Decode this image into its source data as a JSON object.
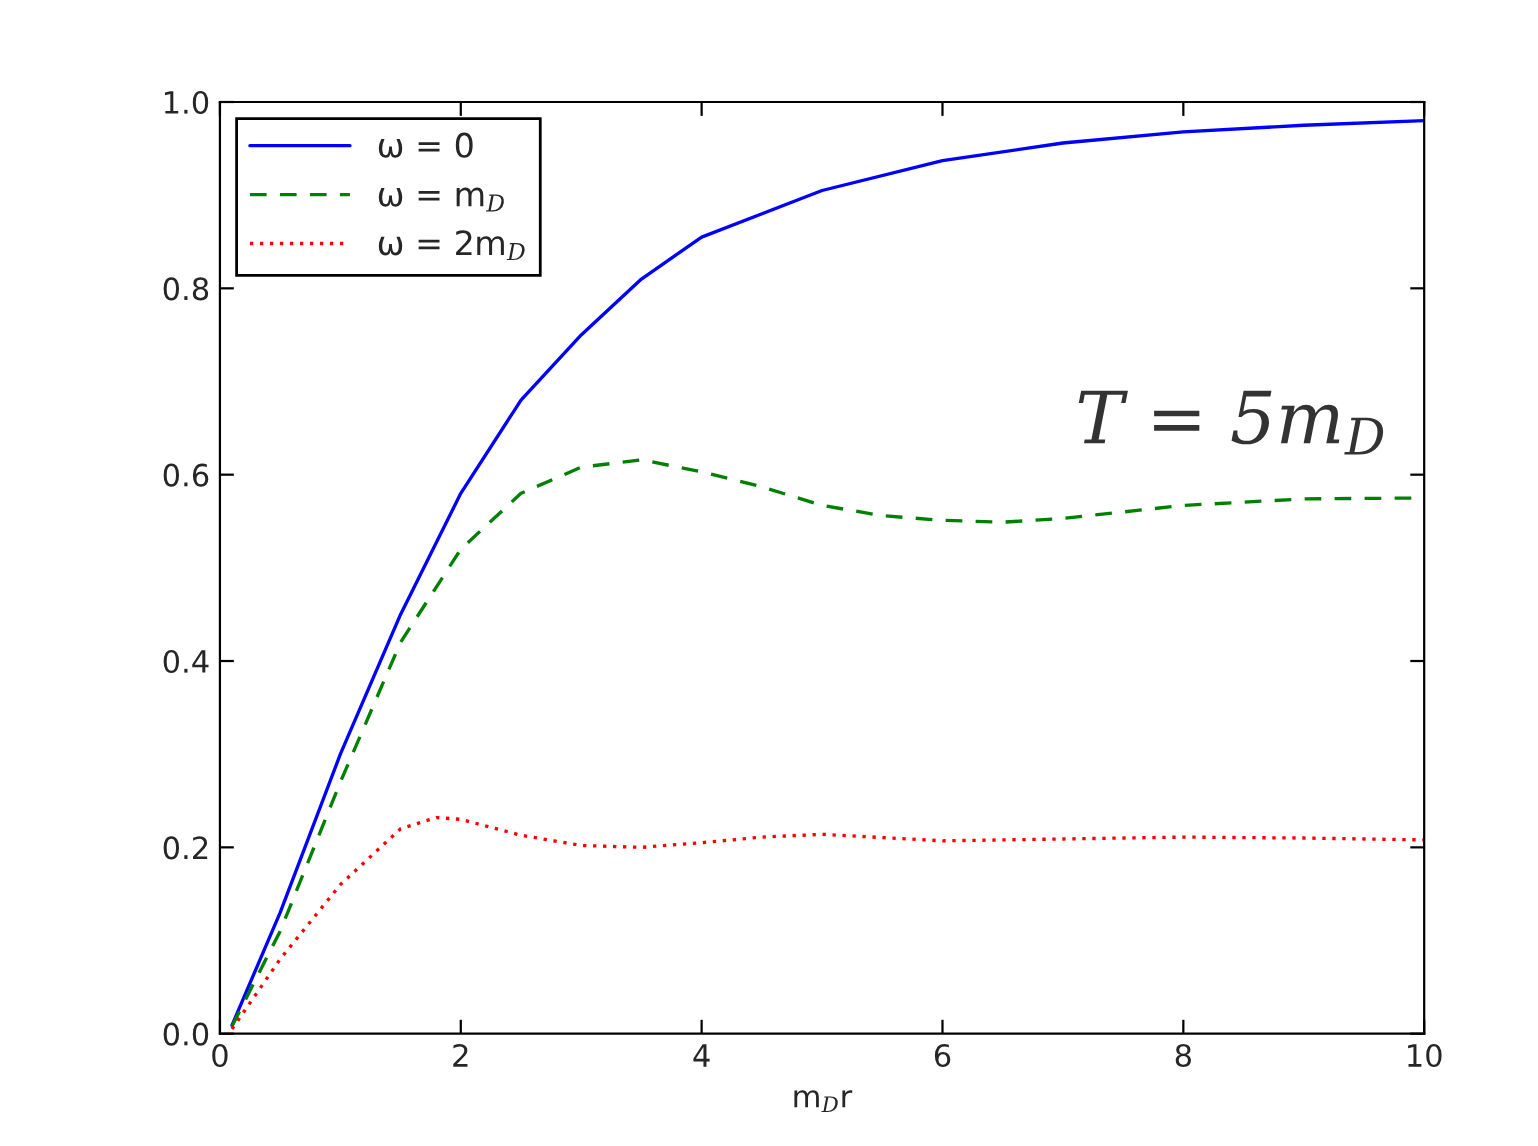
{
  "chart_data": {
    "type": "line",
    "xlabel": "m$_{D}$r",
    "xlim": [
      0,
      10
    ],
    "xticks": [
      0,
      2,
      4,
      6,
      8,
      10
    ],
    "ylim": [
      0.0,
      1.0
    ],
    "yticks": [
      {
        "value": 0.0,
        "label": "0.0"
      },
      {
        "value": 0.2,
        "label": "0.2"
      },
      {
        "value": 0.4,
        "label": "0.4"
      },
      {
        "value": 0.6,
        "label": "0.6"
      },
      {
        "value": 0.8,
        "label": "0.8"
      },
      {
        "value": 1.0,
        "label": "1.0"
      }
    ],
    "grid": false,
    "legend": "top left",
    "annotations": [
      "T = 5m$_{D}$"
    ],
    "series": [
      {
        "name": "ω = 0",
        "color": "#0000ff",
        "line_style": "solid",
        "x": [
          0.1,
          0.5,
          1,
          1.5,
          2,
          2.5,
          3,
          3.5,
          4,
          5,
          6,
          7,
          8,
          9,
          10
        ],
        "values": [
          0.009,
          0.13,
          0.3,
          0.45,
          0.58,
          0.68,
          0.75,
          0.81,
          0.855,
          0.905,
          0.937,
          0.956,
          0.968,
          0.975,
          0.98
        ]
      },
      {
        "name": "ω = m$_{D}$",
        "color": "#008000",
        "line_style": "dashed",
        "x": [
          0.1,
          0.5,
          1,
          1.5,
          2,
          2.5,
          3,
          3.5,
          4,
          4.5,
          5,
          5.5,
          6,
          6.5,
          7,
          7.5,
          8,
          9,
          10
        ],
        "values": [
          0.008,
          0.11,
          0.27,
          0.42,
          0.52,
          0.58,
          0.608,
          0.616,
          0.603,
          0.587,
          0.567,
          0.556,
          0.551,
          0.549,
          0.553,
          0.56,
          0.567,
          0.574,
          0.575
        ]
      },
      {
        "name": "ω = 2m$_{D}$",
        "color": "#ff0000",
        "line_style": "dotted",
        "x": [
          0.1,
          0.5,
          1,
          1.5,
          1.8,
          2,
          2.5,
          3,
          3.5,
          4,
          4.5,
          5,
          6,
          7,
          8,
          9,
          10
        ],
        "values": [
          0.005,
          0.08,
          0.16,
          0.22,
          0.232,
          0.23,
          0.213,
          0.202,
          0.2,
          0.205,
          0.211,
          0.214,
          0.207,
          0.209,
          0.211,
          0.21,
          0.208
        ]
      }
    ]
  }
}
